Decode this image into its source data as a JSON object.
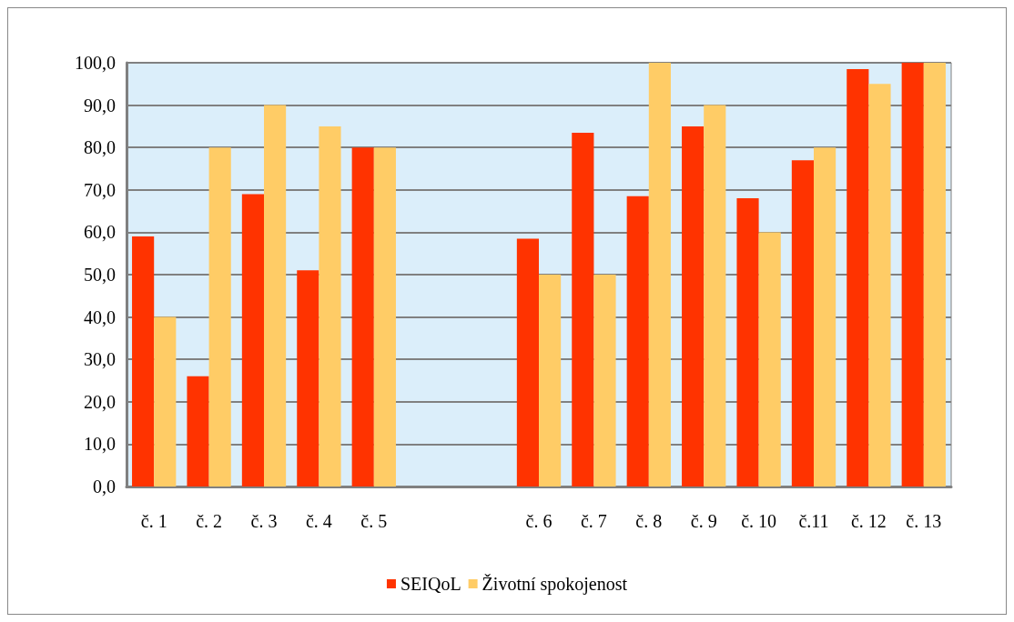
{
  "chart_data": {
    "type": "bar",
    "categories": [
      "č. 1",
      "č. 2",
      "č. 3",
      "č. 4",
      "č. 5",
      null,
      null,
      "č. 6",
      "č. 7",
      "č. 8",
      "č. 9",
      "č. 10",
      "č.11",
      "č. 12",
      "č. 13"
    ],
    "series": [
      {
        "name": "SEIQoL",
        "color": "#ff3300",
        "values": [
          59,
          26,
          69,
          51,
          80,
          null,
          null,
          58.5,
          83.5,
          68.5,
          85,
          68,
          77,
          98.5,
          100
        ]
      },
      {
        "name": "Životní spokojenost",
        "color": "#ffcc66",
        "values": [
          40,
          80,
          90,
          85,
          80,
          null,
          null,
          50,
          50,
          100,
          90,
          60,
          80,
          95,
          100
        ]
      }
    ],
    "ylim": [
      0,
      100
    ],
    "yticks": [
      {
        "value": 0,
        "label": "0,0"
      },
      {
        "value": 10,
        "label": "10,0"
      },
      {
        "value": 20,
        "label": "20,0"
      },
      {
        "value": 30,
        "label": "30,0"
      },
      {
        "value": 40,
        "label": "40,0"
      },
      {
        "value": 50,
        "label": "50,0"
      },
      {
        "value": 60,
        "label": "60,0"
      },
      {
        "value": 70,
        "label": "70,0"
      },
      {
        "value": 80,
        "label": "80,0"
      },
      {
        "value": 90,
        "label": "90,0"
      },
      {
        "value": 100,
        "label": "100,0"
      }
    ],
    "grid": "y",
    "legend": "bottom"
  }
}
